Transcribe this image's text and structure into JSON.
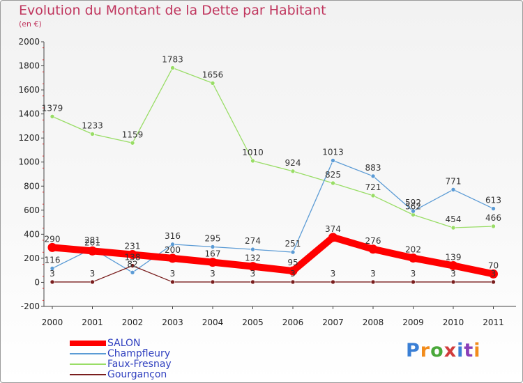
{
  "title": "Evolution du Montant de la Dette par Habitant",
  "subtitle": "(en €)",
  "logo": {
    "text": "Proxiti",
    "colors": [
      "#3a7fd5",
      "#f28c1c",
      "#4aa83a",
      "#d13c3c",
      "#3a7fd5",
      "#8a3fb8",
      "#f28c1c"
    ]
  },
  "chart_data": {
    "type": "line",
    "title": "Evolution du Montant de la Dette par Habitant",
    "ylabel": "(en €)",
    "xlabel": "",
    "categories": [
      "2000",
      "2001",
      "2002",
      "2003",
      "2004",
      "2005",
      "2006",
      "2007",
      "2008",
      "2009",
      "2010",
      "2011"
    ],
    "ylim": [
      -200,
      2000
    ],
    "yticks": [
      -200,
      0,
      200,
      400,
      600,
      800,
      1000,
      1200,
      1400,
      1600,
      1800,
      2000
    ],
    "grid": false,
    "legend_position": "bottom-left",
    "series": [
      {
        "name": "SALON",
        "color": "#ff0000",
        "values": [
          290,
          261,
          231,
          200,
          167,
          132,
          95,
          374,
          276,
          202,
          139,
          70
        ]
      },
      {
        "name": "Champfleury",
        "color": "#5b9bd5",
        "values": [
          116,
          281,
          82,
          316,
          295,
          274,
          251,
          1013,
          883,
          592,
          771,
          613
        ]
      },
      {
        "name": "Faux-Fresnay",
        "color": "#99dd66",
        "values": [
          1379,
          1233,
          1159,
          1783,
          1656,
          1010,
          924,
          825,
          721,
          562,
          454,
          466
        ]
      },
      {
        "name": "Gourgançon",
        "color": "#7a1e1e",
        "values": [
          3,
          3,
          138,
          3,
          3,
          3,
          3,
          3,
          3,
          3,
          3,
          3
        ]
      }
    ]
  }
}
